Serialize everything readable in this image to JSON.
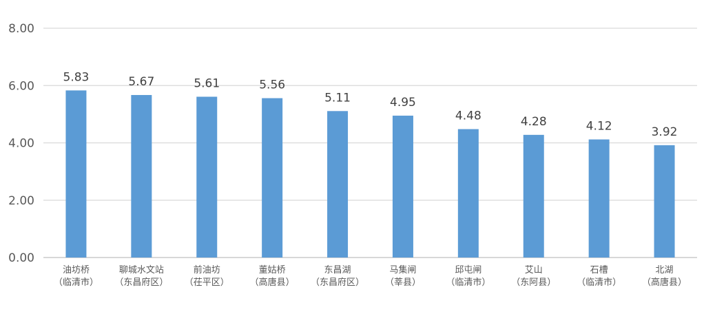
{
  "chart_data": {
    "type": "bar",
    "title": "",
    "xlabel": "",
    "ylabel": "",
    "ylim": [
      0,
      8
    ],
    "yticks": [
      "0.00",
      "2.00",
      "4.00",
      "6.00",
      "8.00"
    ],
    "grid": true,
    "legend": "none",
    "bar_color": "#5b9bd5",
    "categories": [
      [
        "油坊桥",
        "（临清市）"
      ],
      [
        "聊城水文站",
        "（东昌府区）"
      ],
      [
        "前油坊",
        "（茌平区）"
      ],
      [
        "董姑桥",
        "（高唐县）"
      ],
      [
        "东昌湖",
        "（东昌府区）"
      ],
      [
        "马集闸",
        "（莘县）"
      ],
      [
        "邱屯闸",
        "（临清市）"
      ],
      [
        "艾山",
        "（东阿县）"
      ],
      [
        "石槽",
        "（临清市）"
      ],
      [
        "北湖",
        "（高唐县）"
      ]
    ],
    "values": [
      5.83,
      5.67,
      5.61,
      5.56,
      5.11,
      4.95,
      4.48,
      4.28,
      4.12,
      3.92
    ],
    "value_labels": [
      "5.83",
      "5.67",
      "5.61",
      "5.56",
      "5.11",
      "4.95",
      "4.48",
      "4.28",
      "4.12",
      "3.92"
    ]
  }
}
